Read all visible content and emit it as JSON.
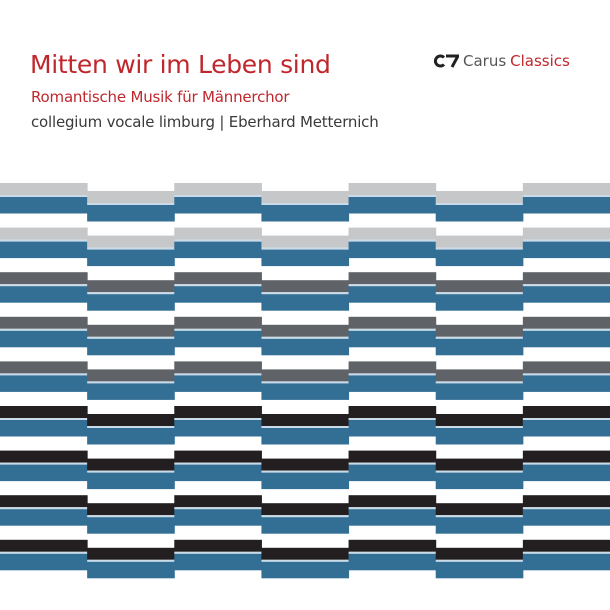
{
  "cover": {
    "title": "Mitten wir im Leben sind",
    "subtitle": "Romantische Musik für Männerchor",
    "performers": "collegium vocale limburg | Eberhard Metternich"
  },
  "logo": {
    "mark": "CV",
    "brand": "Carus",
    "series": "Classics"
  },
  "colors": {
    "title_red": "#c0272d",
    "blue": "#336e95",
    "light_gray": "#c6c7c9",
    "dark_gray": "#5f6368",
    "black": "#231f20"
  },
  "pattern": {
    "columns": 7,
    "groups": [
      "light_gray",
      "light_gray",
      "dark_gray",
      "dark_gray",
      "dark_gray",
      "black",
      "black",
      "black",
      "black"
    ]
  }
}
